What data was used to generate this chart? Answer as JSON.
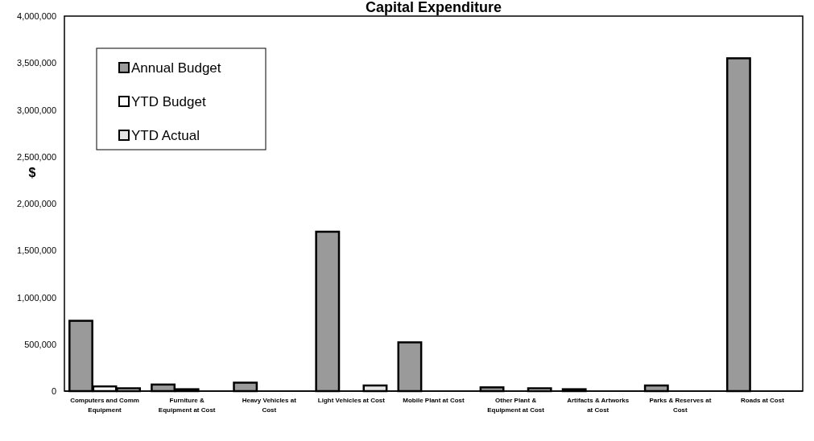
{
  "chart_data": {
    "type": "bar",
    "title": "Capital Expenditure",
    "ylabel": "$",
    "categories": [
      "Computers and Comm Equipment",
      "Furniture & Equipment at Cost",
      "Heavy Vehicles at Cost",
      "Light Vehicles at Cost",
      "Mobile Plant at Cost",
      "Other Plant & Equipment at Cost",
      "Artifacts & Artworks at Cost",
      "Parks & Reserves at Cost",
      "Roads at Cost"
    ],
    "series": [
      {
        "name": "Annual Budget",
        "color": "#9a9a9a",
        "values": [
          750000,
          70000,
          90000,
          1700000,
          520000,
          40000,
          20000,
          60000,
          3550000
        ]
      },
      {
        "name": "YTD Budget",
        "color": "#ffffff",
        "values": [
          50000,
          20000,
          0,
          0,
          0,
          0,
          0,
          0,
          0
        ]
      },
      {
        "name": "YTD Actual",
        "color": "#e6e6e6",
        "values": [
          30000,
          0,
          0,
          60000,
          0,
          30000,
          0,
          0,
          0
        ]
      }
    ],
    "ylim": [
      0,
      4000000
    ],
    "yticks": [
      0,
      {
        "value": 500000,
        "label": "500,000"
      },
      {
        "value": 1000000,
        "label": "1,000,000"
      },
      {
        "value": 1500000,
        "label": "1,500,000"
      },
      {
        "value": 2000000,
        "label": "2,000,000"
      },
      {
        "value": 2500000,
        "label": "2,500,000"
      },
      {
        "value": 3000000,
        "label": "3,000,000"
      },
      {
        "value": 3500000,
        "label": "3,500,000"
      },
      {
        "value": 4000000,
        "label": "4,000,000"
      }
    ],
    "grid": false,
    "legend": "top left"
  }
}
